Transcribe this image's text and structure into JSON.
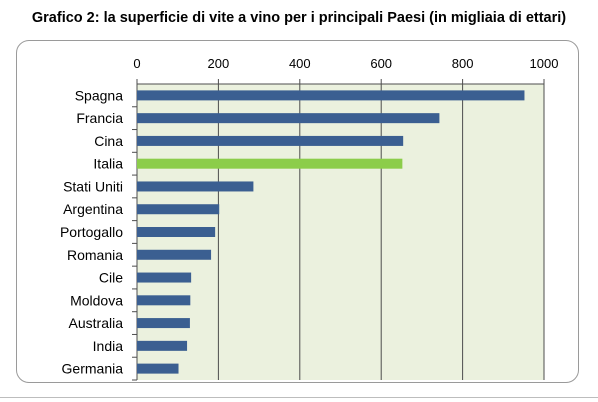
{
  "chart_data": {
    "type": "bar",
    "orientation": "horizontal",
    "title": "Grafico 2: la superficie di vite a vino per i principali Paesi (in migliaia di ettari)",
    "categories": [
      "Spagna",
      "Francia",
      "Cina",
      "Italia",
      "Stati Uniti",
      "Argentina",
      "Portogallo",
      "Romania",
      "Cile",
      "Moldova",
      "Australia",
      "India",
      "Germania"
    ],
    "values": [
      952,
      743,
      654,
      652,
      286,
      202,
      192,
      182,
      133,
      131,
      130,
      123,
      102
    ],
    "xlim": [
      0,
      1000
    ],
    "xticks": [
      "0",
      "200",
      "400",
      "600",
      "800",
      "1000"
    ],
    "x_axis_position": "top",
    "grid": "vertical",
    "xlabel": "",
    "ylabel": "",
    "colors": {
      "bar": "#3b5f91",
      "highlight": "#8ccd4a",
      "plot_background": "#ebf1de",
      "gridline": "#4d4d4d"
    },
    "highlight_category": "Italia"
  }
}
